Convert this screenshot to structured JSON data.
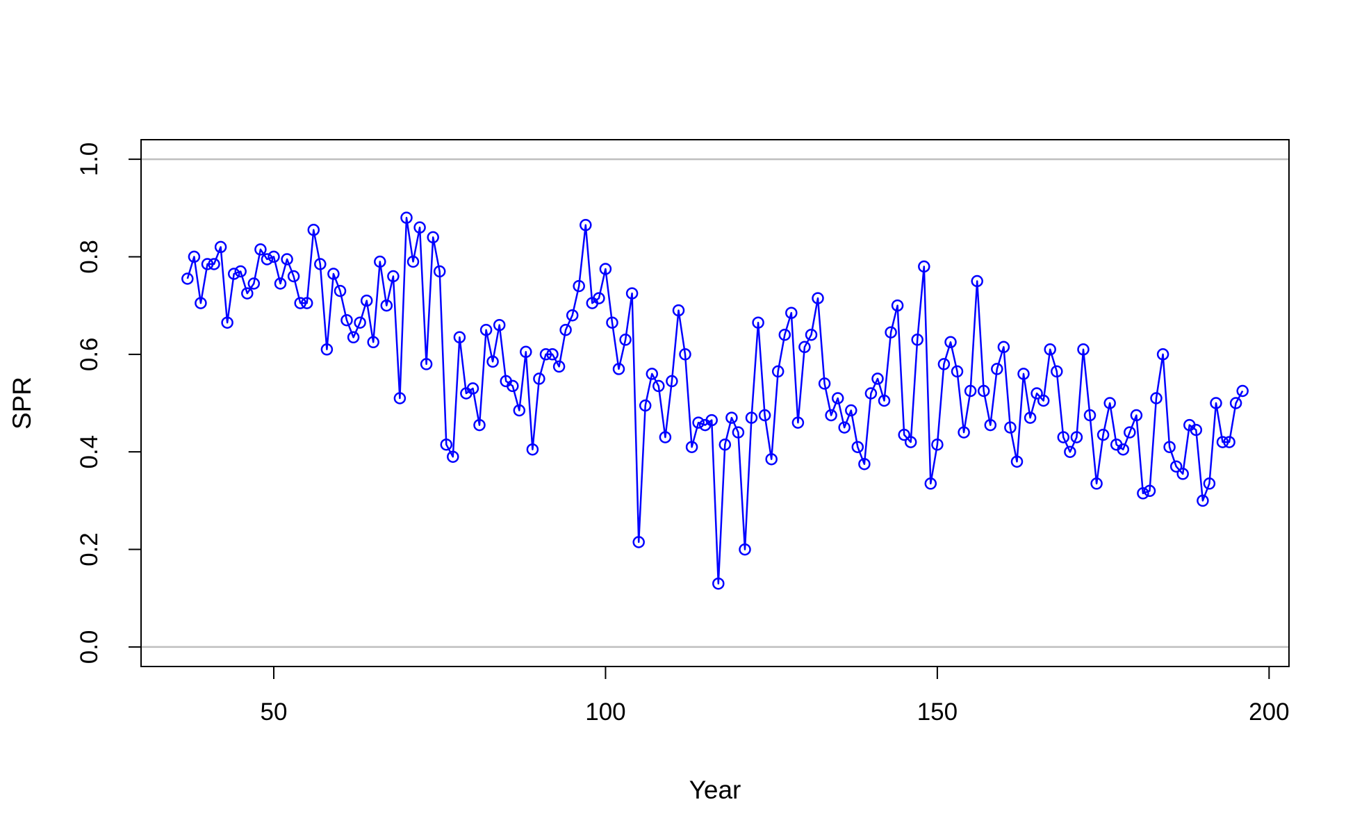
{
  "chart_data": {
    "type": "line",
    "title": "",
    "xlabel": "Year",
    "ylabel": "SPR",
    "xlim": [
      30,
      203
    ],
    "ylim": [
      -0.04,
      1.04
    ],
    "x_ticks": [
      {
        "value": 50,
        "label": "50"
      },
      {
        "value": 100,
        "label": "100"
      },
      {
        "value": 150,
        "label": "150"
      },
      {
        "value": 200,
        "label": "200"
      }
    ],
    "y_ticks": [
      {
        "value": 0.0,
        "label": "0.0"
      },
      {
        "value": 0.2,
        "label": "0.2"
      },
      {
        "value": 0.4,
        "label": "0.4"
      },
      {
        "value": 0.6,
        "label": "0.6"
      },
      {
        "value": 0.8,
        "label": "0.8"
      },
      {
        "value": 1.0,
        "label": "1.0"
      }
    ],
    "reference_lines": [
      0,
      1
    ],
    "reference_line_color": "#bebebe",
    "series_color": "#0000ff",
    "marker": "open-circle",
    "grid": false,
    "x_start": 37,
    "series": [
      {
        "values": [
          0.755,
          0.8,
          0.705,
          0.785,
          0.785,
          0.82,
          0.665,
          0.765,
          0.77,
          0.725,
          0.745,
          0.815,
          0.795,
          0.8,
          0.745,
          0.795,
          0.76,
          0.705,
          0.705,
          0.855,
          0.785,
          0.61,
          0.765,
          0.73,
          0.67,
          0.635,
          0.665,
          0.71,
          0.625,
          0.79,
          0.7,
          0.76,
          0.51,
          0.88,
          0.79,
          0.86,
          0.58,
          0.84,
          0.77,
          0.415,
          0.39,
          0.635,
          0.52,
          0.53,
          0.455,
          0.65,
          0.585,
          0.66,
          0.545,
          0.535,
          0.485,
          0.605,
          0.405,
          0.55,
          0.6,
          0.6,
          0.575,
          0.65,
          0.68,
          0.74,
          0.865,
          0.705,
          0.715,
          0.775,
          0.665,
          0.57,
          0.63,
          0.725,
          0.215,
          0.495,
          0.56,
          0.535,
          0.43,
          0.545,
          0.69,
          0.6,
          0.41,
          0.46,
          0.455,
          0.465,
          0.13,
          0.415,
          0.47,
          0.44,
          0.2,
          0.47,
          0.665,
          0.475,
          0.385,
          0.565,
          0.64,
          0.685,
          0.46,
          0.615,
          0.64,
          0.715,
          0.54,
          0.475,
          0.51,
          0.45,
          0.485,
          0.41,
          0.375,
          0.52,
          0.55,
          0.505,
          0.645,
          0.7,
          0.435,
          0.42,
          0.63,
          0.78,
          0.335,
          0.415,
          0.58,
          0.625,
          0.565,
          0.44,
          0.525,
          0.75,
          0.525,
          0.455,
          0.57,
          0.615,
          0.45,
          0.38,
          0.56,
          0.47,
          0.52,
          0.505,
          0.61,
          0.565,
          0.43,
          0.4,
          0.43,
          0.61,
          0.475,
          0.335,
          0.435,
          0.5,
          0.415,
          0.405,
          0.44,
          0.475,
          0.315,
          0.32,
          0.51,
          0.6,
          0.41,
          0.37,
          0.355,
          0.455,
          0.445,
          0.3,
          0.335,
          0.5,
          0.42,
          0.42,
          0.5,
          0.525
        ]
      }
    ]
  }
}
